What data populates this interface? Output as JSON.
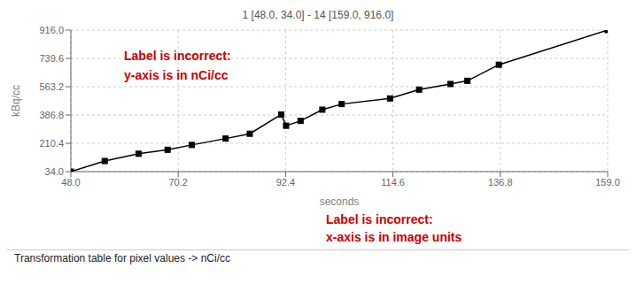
{
  "chart_data": {
    "type": "line",
    "title": "1 [48.0, 34.0] - 14 [159.0, 916.0]",
    "x_label": "seconds",
    "y_label": "kBq/cc",
    "x": [
      48.0,
      55.0,
      62.0,
      68.0,
      73.0,
      80.0,
      85.0,
      91.5,
      92.5,
      95.5,
      100.0,
      104.0,
      114.0,
      120.0,
      126.5,
      130.0,
      136.5,
      159.0
    ],
    "series": [
      {
        "name": "kBq/cc",
        "color": "#000000",
        "marker": "square",
        "values": [
          34.0,
          100.0,
          145.0,
          170.0,
          200.0,
          240.0,
          270.0,
          390.0,
          320.0,
          350.0,
          420.0,
          455.0,
          490.0,
          545.0,
          580.0,
          600.0,
          700.0,
          916.0
        ]
      }
    ],
    "xlim": [
      48.0,
      159.0
    ],
    "ylim": [
      34.0,
      916.0
    ],
    "xticks": [
      {
        "value": 48.0,
        "label": "48.0"
      },
      70.2,
      92.4,
      114.6,
      136.8,
      {
        "value": 159.0,
        "label": "159.0"
      }
    ],
    "yticks": [
      {
        "value": 34.0,
        "label": "34.0"
      },
      210.4,
      386.8,
      563.2,
      739.6,
      {
        "value": 916.0,
        "label": "916.0"
      }
    ],
    "grid": true,
    "annotations": [
      {
        "text": "Label is incorrect:",
        "color": "#cc0000"
      },
      {
        "text": "y-axis is in nCi/cc",
        "color": "#cc0000"
      },
      {
        "text": "Label is incorrect:",
        "color": "#cc0000"
      },
      {
        "text": "x-axis is in image units",
        "color": "#cc0000"
      },
      {
        "text": "Transformation table for pixel values -> nCi/cc"
      }
    ]
  }
}
